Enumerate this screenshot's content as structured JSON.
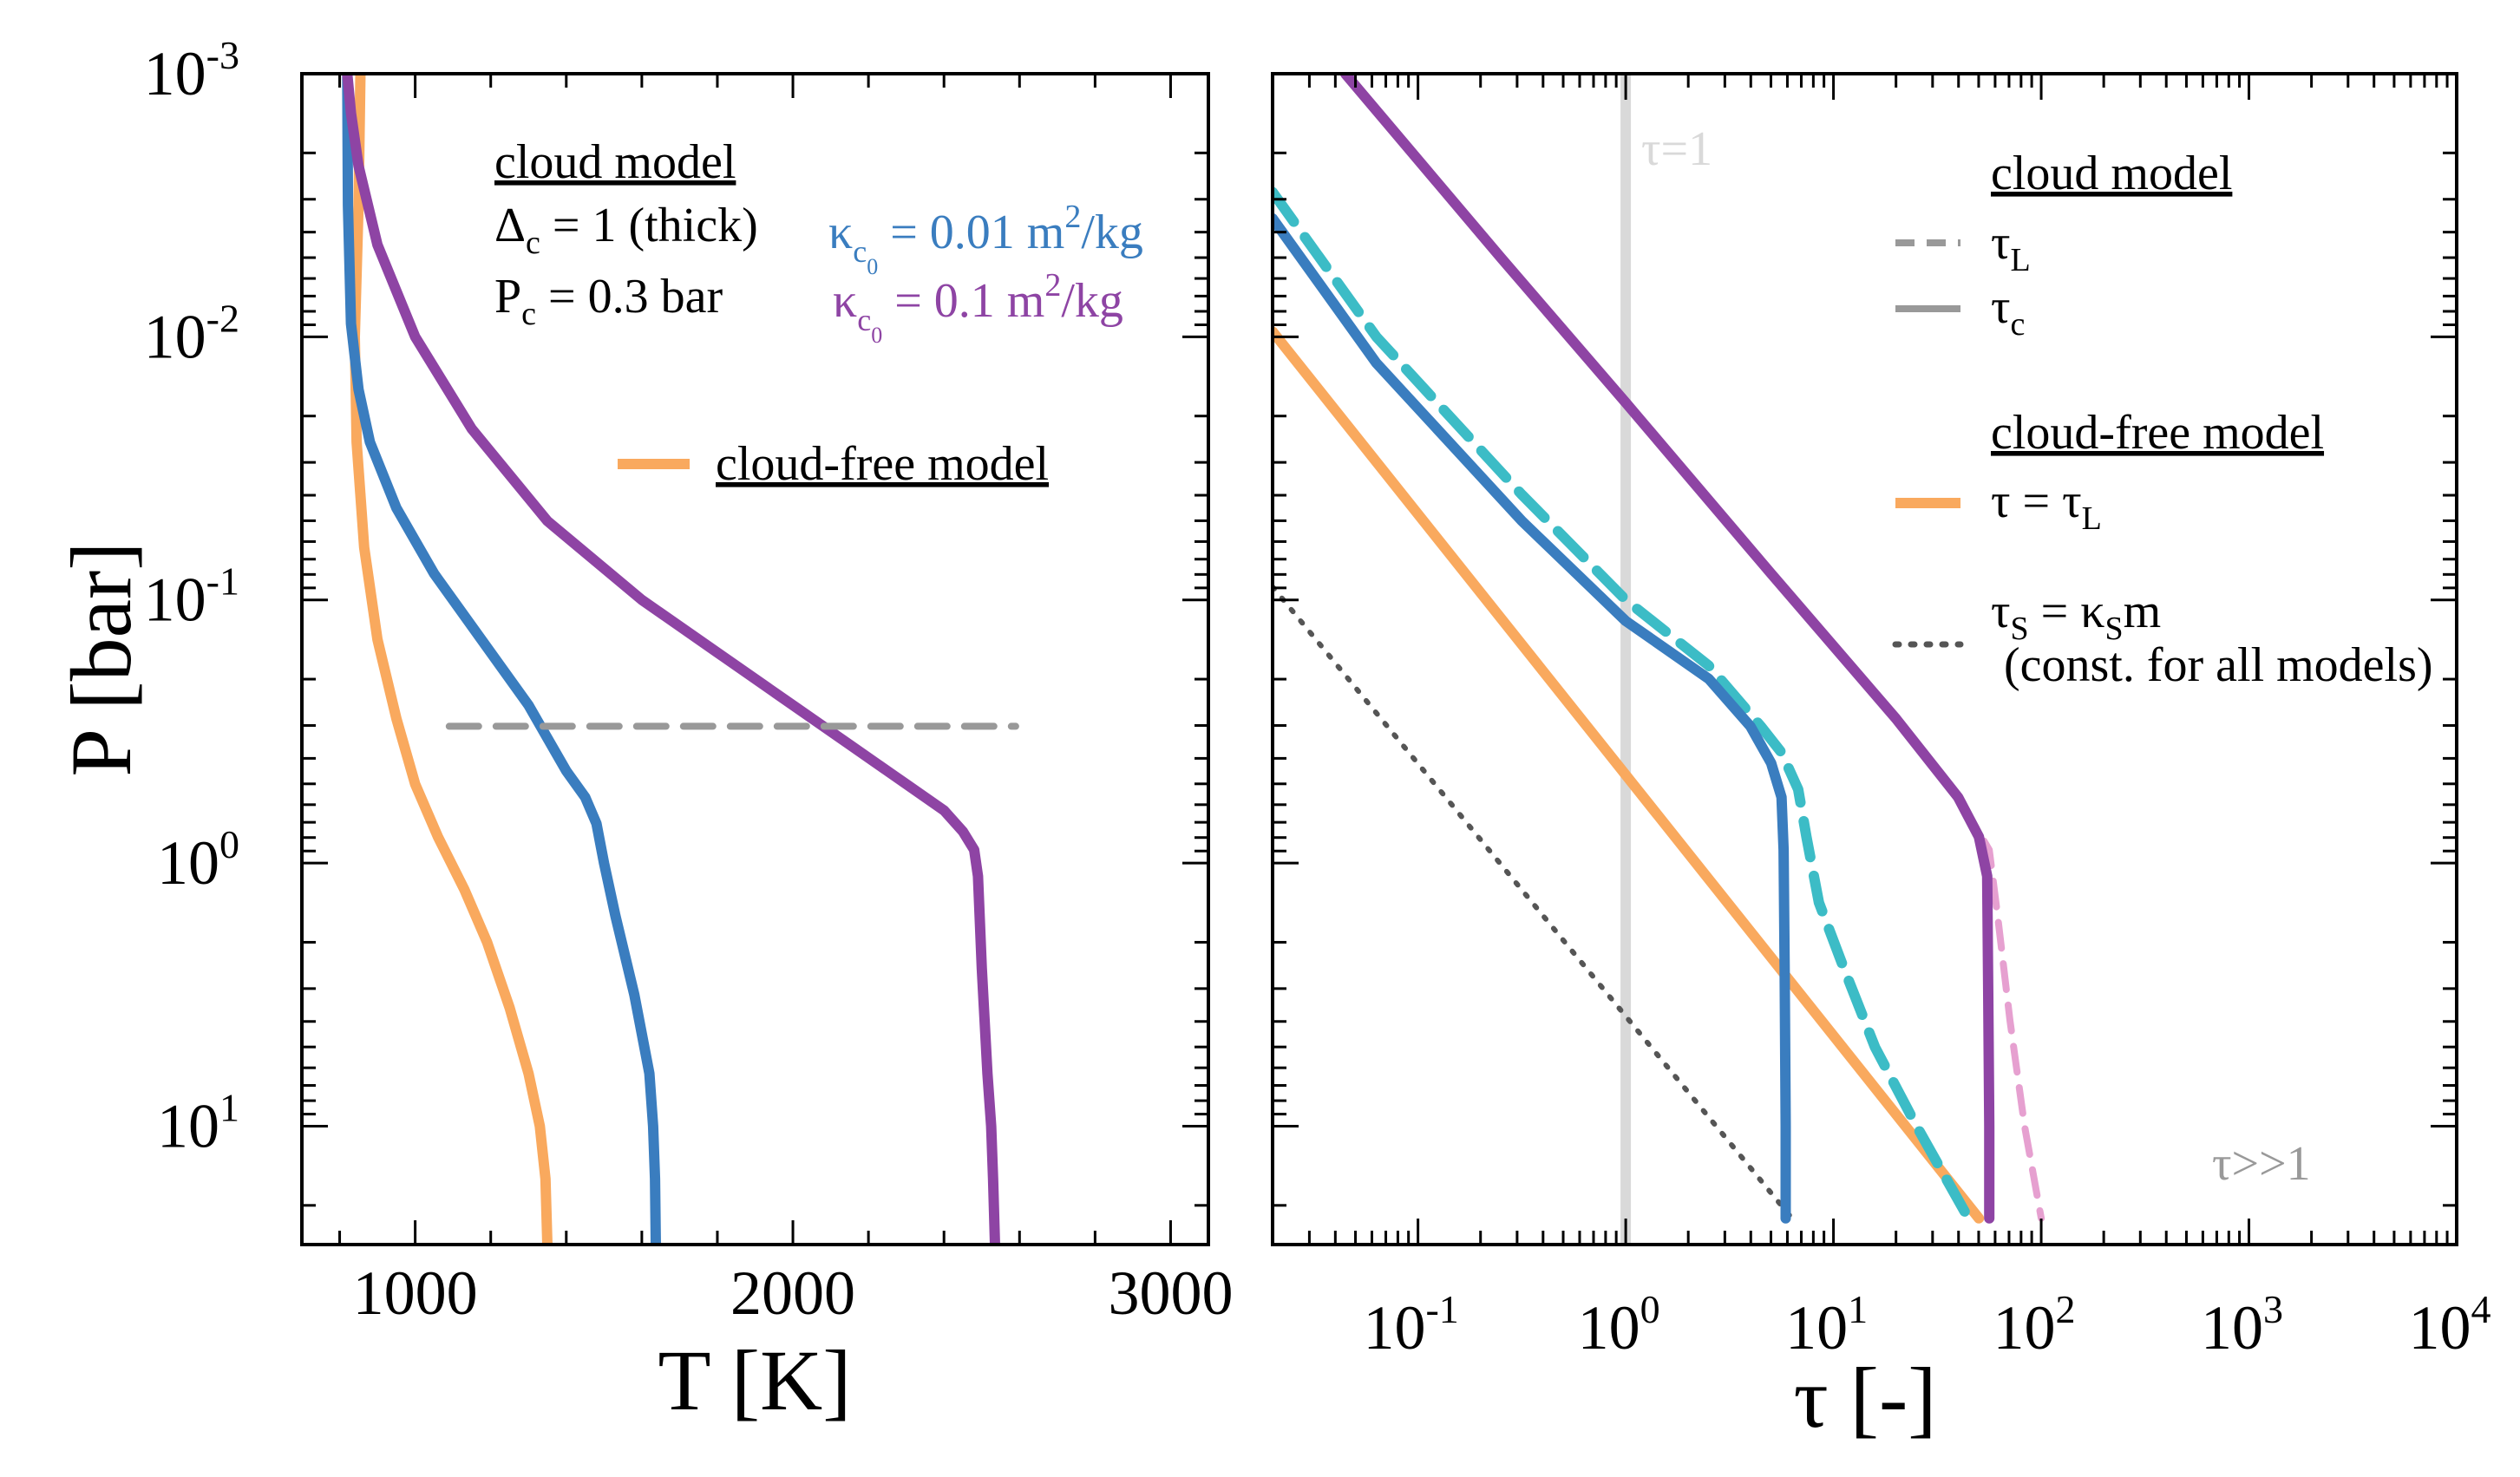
{
  "colors": {
    "orange": "#f9a95e",
    "blue": "#3a7dbf",
    "purple": "#8e44a4",
    "cyan": "#3cbcc6",
    "pink": "#e6a0d0",
    "gray": "#999999",
    "lightgray": "#d9d9d9",
    "dotgray": "#555555"
  },
  "chart_data": [
    {
      "id": "left",
      "type": "line",
      "xlabel": "T [K]",
      "ylabel": "P [bar]",
      "xlim": [
        700,
        3100
      ],
      "ylim_log10": [
        -3,
        1.45
      ],
      "y_scale": "log",
      "y_inverted": true,
      "xticks": [
        {
          "value": 1000,
          "label": "1000"
        },
        {
          "value": 2000,
          "label": "2000"
        },
        {
          "value": 3000,
          "label": "3000"
        }
      ],
      "yticks": [
        {
          "exp": -3,
          "base": "10",
          "sup": "-3"
        },
        {
          "exp": -2,
          "base": "10",
          "sup": "-2"
        },
        {
          "exp": -1,
          "base": "10",
          "sup": "-1"
        },
        {
          "exp": 0,
          "base": "10",
          "sup": "0"
        },
        {
          "exp": 1,
          "base": "10",
          "sup": "1"
        }
      ],
      "series": [
        {
          "name": "cloud-free model",
          "color": "orange",
          "style": "solid",
          "points": [
            [
              855,
              -3
            ],
            [
              850,
              -2.5
            ],
            [
              840,
              -2
            ],
            [
              845,
              -1.6
            ],
            [
              865,
              -1.2
            ],
            [
              900,
              -0.85
            ],
            [
              950,
              -0.55
            ],
            [
              1000,
              -0.3
            ],
            [
              1060,
              -0.1
            ],
            [
              1130,
              0.1
            ],
            [
              1190,
              0.3
            ],
            [
              1250,
              0.55
            ],
            [
              1300,
              0.8
            ],
            [
              1330,
              1.0
            ],
            [
              1345,
              1.2
            ],
            [
              1350,
              1.45
            ]
          ]
        },
        {
          "name": "kappa_c0 = 0.01 m2/kg",
          "color": "blue",
          "style": "solid",
          "points": [
            [
              820,
              -3
            ],
            [
              822,
              -2.5
            ],
            [
              830,
              -2.05
            ],
            [
              850,
              -1.8
            ],
            [
              880,
              -1.6
            ],
            [
              950,
              -1.35
            ],
            [
              1050,
              -1.1
            ],
            [
              1200,
              -0.8
            ],
            [
              1300,
              -0.6
            ],
            [
              1360,
              -0.45
            ],
            [
              1400,
              -0.35
            ],
            [
              1450,
              -0.25
            ],
            [
              1480,
              -0.15
            ],
            [
              1500,
              0.0
            ],
            [
              1530,
              0.2
            ],
            [
              1580,
              0.5
            ],
            [
              1620,
              0.8
            ],
            [
              1630,
              1.0
            ],
            [
              1635,
              1.2
            ],
            [
              1637,
              1.45
            ]
          ]
        },
        {
          "name": "kappa_c0 = 0.1 m2/kg",
          "color": "purple",
          "style": "solid",
          "points": [
            [
              820,
              -3
            ],
            [
              830,
              -2.85
            ],
            [
              850,
              -2.65
            ],
            [
              900,
              -2.35
            ],
            [
              1000,
              -2.0
            ],
            [
              1150,
              -1.65
            ],
            [
              1350,
              -1.3
            ],
            [
              1600,
              -1.0
            ],
            [
              1800,
              -0.8
            ],
            [
              2000,
              -0.6
            ],
            [
              2150,
              -0.45
            ],
            [
              2300,
              -0.3
            ],
            [
              2400,
              -0.2
            ],
            [
              2450,
              -0.12
            ],
            [
              2480,
              -0.05
            ],
            [
              2490,
              0.05
            ],
            [
              2500,
              0.4
            ],
            [
              2515,
              0.8
            ],
            [
              2525,
              1.0
            ],
            [
              2530,
              1.2
            ],
            [
              2535,
              1.45
            ]
          ]
        },
        {
          "name": "cloud level P_c",
          "color": "gray",
          "style": "dashed",
          "points": [
            [
              1090,
              -0.52
            ],
            [
              2590,
              -0.52
            ]
          ]
        }
      ],
      "legend": {
        "title": "cloud model",
        "line1_pre": "Δ",
        "line1_sub": "c",
        "line1_post": " = 1 (thick)",
        "line2_pre": "P",
        "line2_sub": "c",
        "line2_post": " = 0.3 bar",
        "kappa_symbol": "κ",
        "kappa_sub": "c",
        "kappa_subsub": "0",
        "kappa_blue_post": " = 0.01 m",
        "kappa_purple_post": " = 0.1 m",
        "unit_sup": "2",
        "unit_tail": "/kg",
        "cloudfree_label": "cloud-free model"
      }
    },
    {
      "id": "right",
      "type": "line",
      "xlabel": "τ [-]",
      "x_scale": "log",
      "xlim_log10": [
        -1.7,
        4.0
      ],
      "ylim_log10": [
        -3,
        1.45
      ],
      "y_inverted": true,
      "xticks": [
        {
          "exp": -1,
          "base": "10",
          "sup": "-1"
        },
        {
          "exp": 0,
          "base": "10",
          "sup": "0"
        },
        {
          "exp": 1,
          "base": "10",
          "sup": "1"
        },
        {
          "exp": 2,
          "base": "10",
          "sup": "2"
        },
        {
          "exp": 3,
          "base": "10",
          "sup": "3"
        },
        {
          "exp": 4,
          "base": "10",
          "sup": "4"
        }
      ],
      "series": [
        {
          "name": "tau_S = kappa_S m",
          "color": "dotgray",
          "style": "dotted",
          "points": [
            [
              -1.7,
              -1.05
            ],
            [
              0.8,
              1.35
            ]
          ]
        },
        {
          "name": "cloud-free tau = tau_L",
          "color": "orange",
          "style": "solid",
          "points": [
            [
              -1.7,
              -2.02
            ],
            [
              1.7,
              1.35
            ]
          ]
        },
        {
          "name": "tau_L (kappa 0.01)",
          "color": "cyan",
          "style": "dashed",
          "points": [
            [
              -1.7,
              -2.55
            ],
            [
              -1.2,
              -2.0
            ],
            [
              -0.5,
              -1.4
            ],
            [
              0.0,
              -1.0
            ],
            [
              0.4,
              -0.75
            ],
            [
              0.65,
              -0.52
            ],
            [
              0.75,
              -0.42
            ],
            [
              0.83,
              -0.28
            ],
            [
              0.87,
              -0.1
            ],
            [
              0.93,
              0.15
            ],
            [
              1.05,
              0.4
            ],
            [
              1.2,
              0.7
            ],
            [
              1.4,
              1.0
            ],
            [
              1.65,
              1.35
            ]
          ]
        },
        {
          "name": "tau_c (kappa 0.01)",
          "color": "blue",
          "style": "solid",
          "points": [
            [
              -1.7,
              -2.45
            ],
            [
              -1.2,
              -1.9
            ],
            [
              -0.5,
              -1.3
            ],
            [
              0.0,
              -0.92
            ],
            [
              0.4,
              -0.7
            ],
            [
              0.6,
              -0.52
            ],
            [
              0.7,
              -0.38
            ],
            [
              0.75,
              -0.25
            ],
            [
              0.76,
              -0.05
            ],
            [
              0.765,
              0.4
            ],
            [
              0.77,
              1.0
            ],
            [
              0.77,
              1.35
            ]
          ]
        },
        {
          "name": "tau_L (kappa 0.1)",
          "color": "pink",
          "style": "dashed",
          "points": [
            [
              -1.35,
              -3
            ],
            [
              -0.6,
              -2.3
            ],
            [
              0.0,
              -1.75
            ],
            [
              0.7,
              -1.1
            ],
            [
              1.3,
              -0.55
            ],
            [
              1.6,
              -0.25
            ],
            [
              1.75,
              -0.05
            ],
            [
              1.79,
              0.2
            ],
            [
              1.85,
              0.6
            ],
            [
              1.92,
              1.0
            ],
            [
              2.0,
              1.35
            ]
          ]
        },
        {
          "name": "tau_c (kappa 0.1)",
          "color": "purple",
          "style": "solid",
          "points": [
            [
              -1.35,
              -3
            ],
            [
              -0.6,
              -2.3
            ],
            [
              0.0,
              -1.75
            ],
            [
              0.7,
              -1.1
            ],
            [
              1.3,
              -0.55
            ],
            [
              1.6,
              -0.25
            ],
            [
              1.7,
              -0.1
            ],
            [
              1.74,
              0.05
            ],
            [
              1.745,
              0.5
            ],
            [
              1.75,
              1.0
            ],
            [
              1.75,
              1.35
            ]
          ]
        },
        {
          "name": "tau = 1",
          "color": "lightgray",
          "style": "solid",
          "points": [
            [
              0,
              -3
            ],
            [
              0,
              1.45
            ]
          ]
        }
      ],
      "annotations": {
        "tau1": "τ=1",
        "taugg": "τ>>1"
      },
      "legend": {
        "title": "cloud model",
        "tauL_sym": "τ",
        "tauL_sub": "L",
        "tauc_sym": "τ",
        "tauc_sub": "c",
        "cloudfree_title": "cloud-free model",
        "cloudfree_pre": "τ = τ",
        "cloudfree_sub": "L",
        "tauS_sym": "τ",
        "tauS_sub": "S",
        "tauS_mid": " = κ",
        "tauS_sub2": "S",
        "tauS_tail": "m",
        "tauS_note": "(const. for all models)"
      }
    }
  ]
}
